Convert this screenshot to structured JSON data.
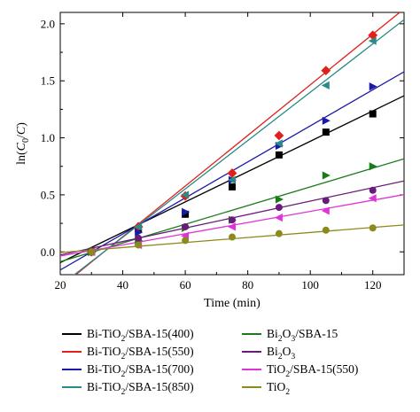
{
  "chart_data": {
    "type": "scatter",
    "title": "",
    "xlabel": "Time (min)",
    "ylabel_parts": {
      "pre": "ln(",
      "c": "C",
      "sub": "0",
      "post": "/",
      "c2": "C",
      "end": ")"
    },
    "xlim": [
      20,
      130
    ],
    "ylim": [
      -0.2,
      2.1
    ],
    "x_ticks": [
      20,
      40,
      60,
      80,
      100,
      120
    ],
    "y_ticks": [
      0.0,
      0.5,
      1.0,
      1.5,
      2.0
    ],
    "y_tick_labels": [
      "0.0",
      "0.5",
      "1.0",
      "1.5",
      "2.0"
    ],
    "x": [
      30,
      45,
      60,
      75,
      90,
      105,
      120
    ],
    "series": [
      {
        "name_parts": [
          "Bi-TiO",
          "2",
          "/SBA-15(400)"
        ],
        "color": "#000000",
        "marker": "square",
        "values": [
          0.0,
          0.2,
          0.33,
          0.57,
          0.85,
          1.05,
          1.21
        ],
        "fit": [
          -0.36,
          0.0133
        ]
      },
      {
        "name_parts": [
          "Bi-TiO",
          "2",
          "/SBA-15(550)"
        ],
        "color": "#e0201b",
        "marker": "diamond",
        "values": [
          0.0,
          0.22,
          0.49,
          0.69,
          1.02,
          1.59,
          1.9
        ],
        "fit": [
          -0.755,
          0.0222
        ]
      },
      {
        "name_parts": [
          "Bi-TiO",
          "2",
          "/SBA-15(700)"
        ],
        "color": "#1a1aa8",
        "marker": "triangle-right",
        "values": [
          0.0,
          0.17,
          0.35,
          0.63,
          0.93,
          1.15,
          1.45
        ],
        "fit": [
          -0.475,
          0.0158
        ]
      },
      {
        "name_parts": [
          "Bi-TiO",
          "2",
          "/SBA-15(850)"
        ],
        "color": "#2a8a86",
        "marker": "triangle-left",
        "values": [
          0.0,
          0.22,
          0.5,
          0.63,
          0.95,
          1.46,
          1.85
        ],
        "fit": [
          -0.72,
          0.0212
        ]
      },
      {
        "name_parts": [
          "Bi",
          "2",
          "O",
          "3",
          "/SBA-15"
        ],
        "color": "#1b7a1b",
        "marker": "triangle-right",
        "values": [
          0.0,
          0.1,
          0.21,
          0.28,
          0.46,
          0.67,
          0.75
        ],
        "fit": [
          -0.25,
          0.0082
        ]
      },
      {
        "name_parts": [
          "Bi",
          "2",
          "O",
          "3"
        ],
        "color": "#6a1b7a",
        "marker": "circle",
        "values": [
          0.0,
          0.12,
          0.22,
          0.28,
          0.39,
          0.45,
          0.54
        ],
        "fit": [
          -0.145,
          0.0059
        ]
      },
      {
        "name_parts": [
          "TiO",
          "2",
          "/SBA-15(550)"
        ],
        "color": "#e033d8",
        "marker": "triangle-left",
        "values": [
          0.0,
          0.06,
          0.14,
          0.22,
          0.3,
          0.36,
          0.47
        ],
        "fit": [
          -0.135,
          0.0049
        ]
      },
      {
        "name_parts": [
          "TiO",
          "2"
        ],
        "color": "#8c8a1c",
        "marker": "circle",
        "values": [
          0.0,
          0.06,
          0.1,
          0.13,
          0.16,
          0.19,
          0.21
        ],
        "fit": [
          -0.05,
          0.0022
        ]
      }
    ],
    "legend_placement": "bottom",
    "grid": false
  }
}
